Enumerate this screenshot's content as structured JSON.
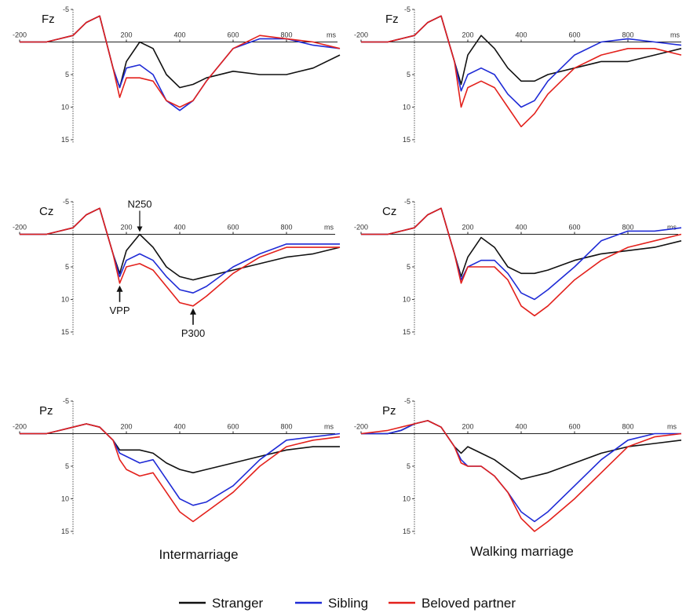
{
  "legend": [
    {
      "name": "Stranger",
      "color": "#111111"
    },
    {
      "name": "Sibling",
      "color": "#1f2bd6"
    },
    {
      "name": "Beloved partner",
      "color": "#e3211c"
    }
  ],
  "groups": [
    "Intermarriage",
    "Walking marriage"
  ],
  "chart_data": [
    {
      "type": "line",
      "group": "Intermarriage",
      "channel": "Fz",
      "xunit": "ms",
      "xlim": [
        -200,
        1000
      ],
      "ylim": [
        -5,
        15
      ],
      "y_inverted": true,
      "xticks": [
        -200,
        200,
        400,
        600,
        800
      ],
      "yticks": [
        -5,
        5,
        10,
        15
      ],
      "x": [
        -200,
        -100,
        -50,
        0,
        50,
        100,
        150,
        175,
        200,
        250,
        300,
        350,
        400,
        450,
        500,
        600,
        700,
        800,
        900,
        1000
      ],
      "series": [
        {
          "name": "Stranger",
          "values": [
            0,
            0,
            -0.5,
            -1,
            -3,
            -4,
            4,
            7,
            3,
            0,
            1,
            5,
            7,
            6.5,
            5.5,
            4.5,
            5,
            5,
            4,
            2
          ]
        },
        {
          "name": "Sibling",
          "values": [
            0,
            0,
            -0.5,
            -1,
            -3,
            -4,
            4,
            7,
            4,
            3.5,
            5,
            9,
            10.5,
            9,
            6,
            1,
            -0.5,
            -0.5,
            0.5,
            1
          ]
        },
        {
          "name": "Beloved partner",
          "values": [
            0,
            0,
            -0.5,
            -1,
            -3,
            -4,
            4,
            8.5,
            5.5,
            5.5,
            6,
            9,
            10,
            9,
            6,
            1,
            -1,
            -0.5,
            0,
            1
          ]
        }
      ]
    },
    {
      "type": "line",
      "group": "Walking marriage",
      "channel": "Fz",
      "xunit": "ms",
      "xlim": [
        -200,
        1000
      ],
      "ylim": [
        -5,
        15
      ],
      "y_inverted": true,
      "xticks": [
        -200,
        200,
        400,
        600,
        800
      ],
      "yticks": [
        -5,
        5,
        10,
        15
      ],
      "x": [
        -200,
        -100,
        -50,
        0,
        50,
        100,
        150,
        175,
        200,
        250,
        300,
        350,
        400,
        450,
        500,
        600,
        700,
        800,
        900,
        1000
      ],
      "series": [
        {
          "name": "Stranger",
          "values": [
            0,
            0,
            -0.5,
            -1,
            -3,
            -4,
            3,
            6.5,
            2,
            -1,
            1,
            4,
            6,
            6,
            5,
            4,
            3,
            3,
            2,
            1
          ]
        },
        {
          "name": "Sibling",
          "values": [
            0,
            0,
            -0.5,
            -1,
            -3,
            -4,
            3,
            7.5,
            5,
            4,
            5,
            8,
            10,
            9,
            6,
            2,
            0,
            -0.5,
            0,
            0.5
          ]
        },
        {
          "name": "Beloved partner",
          "values": [
            0,
            0,
            -0.5,
            -1,
            -3,
            -4,
            3,
            10,
            7,
            6,
            7,
            10,
            13,
            11,
            8,
            4,
            2,
            1,
            1,
            2
          ]
        }
      ]
    },
    {
      "type": "line",
      "group": "Intermarriage",
      "channel": "Cz",
      "xunit": "ms",
      "xlim": [
        -200,
        1000
      ],
      "ylim": [
        -5,
        15
      ],
      "y_inverted": true,
      "xticks": [
        -200,
        200,
        400,
        600,
        800
      ],
      "yticks": [
        -5,
        5,
        10,
        15
      ],
      "x": [
        -200,
        -100,
        -50,
        0,
        50,
        100,
        150,
        175,
        200,
        250,
        300,
        350,
        400,
        450,
        500,
        600,
        700,
        800,
        900,
        1000
      ],
      "series": [
        {
          "name": "Stranger",
          "values": [
            0,
            0,
            -0.5,
            -1,
            -3,
            -4,
            3,
            6,
            2.5,
            0,
            2,
            5,
            6.5,
            7,
            6.5,
            5.5,
            4.5,
            3.5,
            3,
            2
          ]
        },
        {
          "name": "Sibling",
          "values": [
            0,
            0,
            -0.5,
            -1,
            -3,
            -4,
            3,
            6.5,
            4,
            3,
            4,
            6.5,
            8.5,
            9,
            8,
            5,
            3,
            1.5,
            1.5,
            1.5
          ]
        },
        {
          "name": "Beloved partner",
          "values": [
            0,
            0,
            -0.5,
            -1,
            -3,
            -4,
            3,
            7.5,
            5,
            4.5,
            5.5,
            8,
            10.5,
            11,
            9.5,
            6,
            3.5,
            2,
            2,
            2
          ]
        }
      ],
      "annotations": [
        {
          "label": "N250",
          "x": 250,
          "y": 0,
          "arrow": "down"
        },
        {
          "label": "VPP",
          "x": 175,
          "y": 7.5,
          "arrow": "up"
        },
        {
          "label": "P300",
          "x": 450,
          "y": 11,
          "arrow": "up"
        }
      ]
    },
    {
      "type": "line",
      "group": "Walking marriage",
      "channel": "Cz",
      "xunit": "ms",
      "xlim": [
        -200,
        1000
      ],
      "ylim": [
        -5,
        15
      ],
      "y_inverted": true,
      "xticks": [
        -200,
        200,
        400,
        600,
        800
      ],
      "yticks": [
        -5,
        5,
        10,
        15
      ],
      "x": [
        -200,
        -100,
        -50,
        0,
        50,
        100,
        150,
        175,
        200,
        250,
        300,
        350,
        400,
        450,
        500,
        600,
        700,
        800,
        900,
        1000
      ],
      "series": [
        {
          "name": "Stranger",
          "values": [
            0,
            0,
            -0.5,
            -1,
            -3,
            -4,
            3,
            6.5,
            3.5,
            0.5,
            2,
            5,
            6,
            6,
            5.5,
            4,
            3,
            2.5,
            2,
            1
          ]
        },
        {
          "name": "Sibling",
          "values": [
            0,
            0,
            -0.5,
            -1,
            -3,
            -4,
            3,
            7,
            5,
            4,
            4,
            6,
            9,
            10,
            8.5,
            5,
            1,
            -0.5,
            -0.5,
            -1
          ]
        },
        {
          "name": "Beloved partner",
          "values": [
            0,
            0,
            -0.5,
            -1,
            -3,
            -4,
            3,
            7.5,
            5,
            5,
            5,
            7,
            11,
            12.5,
            11,
            7,
            4,
            2,
            1,
            0
          ]
        }
      ]
    },
    {
      "type": "line",
      "group": "Intermarriage",
      "channel": "Pz",
      "xunit": "ms",
      "xlim": [
        -200,
        1000
      ],
      "ylim": [
        -5,
        15
      ],
      "y_inverted": true,
      "xticks": [
        -200,
        200,
        400,
        600,
        800
      ],
      "yticks": [
        -5,
        5,
        10,
        15
      ],
      "x": [
        -200,
        -100,
        -50,
        0,
        50,
        100,
        150,
        175,
        200,
        250,
        300,
        350,
        400,
        450,
        500,
        600,
        700,
        800,
        900,
        1000
      ],
      "series": [
        {
          "name": "Stranger",
          "values": [
            0,
            0,
            -0.5,
            -1,
            -1.5,
            -1,
            1,
            2.5,
            2.5,
            2.5,
            3,
            4.5,
            5.5,
            6,
            5.5,
            4.5,
            3.5,
            2.5,
            2,
            2
          ]
        },
        {
          "name": "Sibling",
          "values": [
            0,
            0,
            -0.5,
            -1,
            -1.5,
            -1,
            1,
            3,
            3.5,
            4.5,
            4,
            7,
            10,
            11,
            10.5,
            8,
            4,
            1,
            0.5,
            0
          ]
        },
        {
          "name": "Beloved partner",
          "values": [
            0,
            0,
            -0.5,
            -1,
            -1.5,
            -1,
            1,
            4,
            5.5,
            6.5,
            6,
            9,
            12,
            13.5,
            12,
            9,
            5,
            2,
            1,
            0.5
          ]
        }
      ]
    },
    {
      "type": "line",
      "group": "Walking marriage",
      "channel": "Pz",
      "xunit": "ms",
      "xlim": [
        -200,
        1000
      ],
      "ylim": [
        -5,
        15
      ],
      "y_inverted": true,
      "xticks": [
        -200,
        200,
        400,
        600,
        800
      ],
      "yticks": [
        -5,
        5,
        10,
        15
      ],
      "x": [
        -200,
        -100,
        -50,
        0,
        50,
        100,
        150,
        175,
        200,
        250,
        300,
        350,
        400,
        450,
        500,
        600,
        700,
        800,
        900,
        1000
      ],
      "series": [
        {
          "name": "Stranger",
          "values": [
            0,
            0,
            -0.5,
            -1.5,
            -2,
            -1,
            2,
            3,
            2,
            3,
            4,
            5.5,
            7,
            6.5,
            6,
            4.5,
            3,
            2,
            1.5,
            1
          ]
        },
        {
          "name": "Sibling",
          "values": [
            0,
            0,
            -0.5,
            -1.5,
            -2,
            -1,
            2,
            4,
            5,
            5,
            6.5,
            9,
            12,
            13.5,
            12,
            8,
            4,
            1,
            0,
            0
          ]
        },
        {
          "name": "Beloved partner",
          "values": [
            0,
            -0.5,
            -1,
            -1.5,
            -2,
            -1,
            2,
            4.5,
            5,
            5,
            6.5,
            9,
            13,
            15,
            13.5,
            10,
            6,
            2,
            0.5,
            0
          ]
        }
      ]
    }
  ]
}
